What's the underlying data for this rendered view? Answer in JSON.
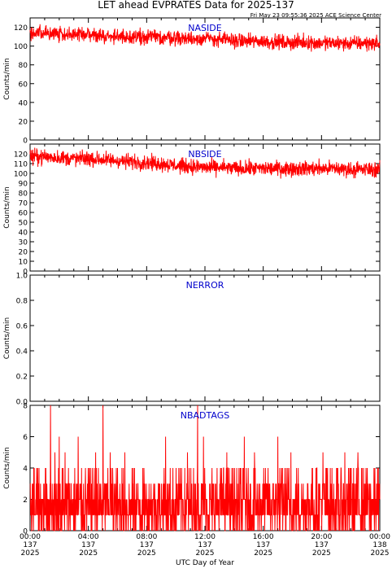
{
  "header": {
    "title": "LET ahead EVPRATES Data for 2025-137",
    "timestamp": "Fri May 23 09:55:36 2025 ACE Science Center"
  },
  "colors": {
    "trace": "#ff0000",
    "panel_label": "#0000cc",
    "axes": "#000000"
  },
  "x_axis": {
    "label": "UTC Day of Year",
    "ticks": [
      {
        "time": "00:00",
        "day": "137",
        "year": "2025"
      },
      {
        "time": "04:00",
        "day": "137",
        "year": "2025"
      },
      {
        "time": "08:00",
        "day": "137",
        "year": "2025"
      },
      {
        "time": "12:00",
        "day": "137",
        "year": "2025"
      },
      {
        "time": "16:00",
        "day": "137",
        "year": "2025"
      },
      {
        "time": "20:00",
        "day": "137",
        "year": "2025"
      },
      {
        "time": "00:00",
        "day": "138",
        "year": "2025"
      }
    ]
  },
  "chart_data": [
    {
      "type": "line",
      "name": "NASIDE",
      "ylabel": "Counts/min",
      "xlim": [
        0,
        24
      ],
      "ylim": [
        0,
        130
      ],
      "yticks": [
        0,
        20,
        40,
        60,
        80,
        100,
        120
      ],
      "x_unit": "hour of day 137",
      "series": [
        {
          "name": "NASIDE",
          "x": [
            0,
            1,
            2,
            3,
            4,
            5,
            6,
            7,
            8,
            9,
            10,
            11,
            12,
            13,
            14,
            15,
            16,
            17,
            18,
            19,
            20,
            21,
            22,
            23,
            24
          ],
          "values": [
            113,
            114,
            113,
            112,
            112,
            111,
            110,
            110,
            110,
            109,
            109,
            108,
            108,
            107,
            106,
            105,
            105,
            104,
            104,
            104,
            103,
            103,
            103,
            103,
            103
          ],
          "spread": 7
        }
      ]
    },
    {
      "type": "line",
      "name": "NBSIDE",
      "ylabel": "Counts/min",
      "xlim": [
        0,
        24
      ],
      "ylim": [
        0,
        130
      ],
      "yticks": [
        0,
        10,
        20,
        30,
        40,
        50,
        60,
        70,
        80,
        90,
        100,
        110,
        120
      ],
      "x_unit": "hour of day 137",
      "series": [
        {
          "name": "NBSIDE",
          "x": [
            0,
            1,
            2,
            3,
            4,
            5,
            6,
            7,
            8,
            9,
            10,
            11,
            12,
            13,
            14,
            15,
            16,
            17,
            18,
            19,
            20,
            21,
            22,
            23,
            24
          ],
          "values": [
            117,
            117,
            116,
            115,
            115,
            114,
            113,
            112,
            111,
            110,
            108,
            107,
            106,
            106,
            105,
            105,
            105,
            105,
            105,
            105,
            105,
            105,
            104,
            104,
            104
          ],
          "spread": 7
        }
      ]
    },
    {
      "type": "line",
      "name": "NERROR",
      "ylabel": "Counts/min",
      "xlim": [
        0,
        24
      ],
      "ylim": [
        0,
        1.0
      ],
      "yticks": [
        0.0,
        0.2,
        0.4,
        0.6,
        0.8,
        1.0
      ],
      "x_unit": "hour of day 137",
      "series": [
        {
          "name": "NERROR",
          "x": [],
          "values": []
        }
      ]
    },
    {
      "type": "line",
      "name": "NBADTAGS",
      "ylabel": "Counts/min",
      "xlim": [
        0,
        24
      ],
      "ylim": [
        0,
        8
      ],
      "yticks": [
        0,
        2,
        4,
        6,
        8
      ],
      "x_unit": "hour of day 137",
      "series": [
        {
          "name": "NBADTAGS",
          "levels": [
            0,
            1,
            2,
            3,
            4
          ],
          "level_weights": [
            0.18,
            0.3,
            0.28,
            0.16,
            0.08
          ],
          "spikes": [
            {
              "x": 1.4,
              "y": 8
            },
            {
              "x": 1.7,
              "y": 5
            },
            {
              "x": 2.0,
              "y": 6
            },
            {
              "x": 2.4,
              "y": 5
            },
            {
              "x": 3.3,
              "y": 6
            },
            {
              "x": 4.5,
              "y": 5
            },
            {
              "x": 5.0,
              "y": 8
            },
            {
              "x": 5.5,
              "y": 5
            },
            {
              "x": 6.5,
              "y": 5
            },
            {
              "x": 9.3,
              "y": 6
            },
            {
              "x": 10.8,
              "y": 5
            },
            {
              "x": 11.5,
              "y": 8
            },
            {
              "x": 11.9,
              "y": 6
            },
            {
              "x": 13.5,
              "y": 5
            },
            {
              "x": 14.7,
              "y": 6
            },
            {
              "x": 15.4,
              "y": 5
            },
            {
              "x": 17.0,
              "y": 6
            },
            {
              "x": 17.9,
              "y": 5
            },
            {
              "x": 20.1,
              "y": 5
            },
            {
              "x": 21.6,
              "y": 5
            },
            {
              "x": 22.5,
              "y": 5
            }
          ]
        }
      ]
    }
  ]
}
